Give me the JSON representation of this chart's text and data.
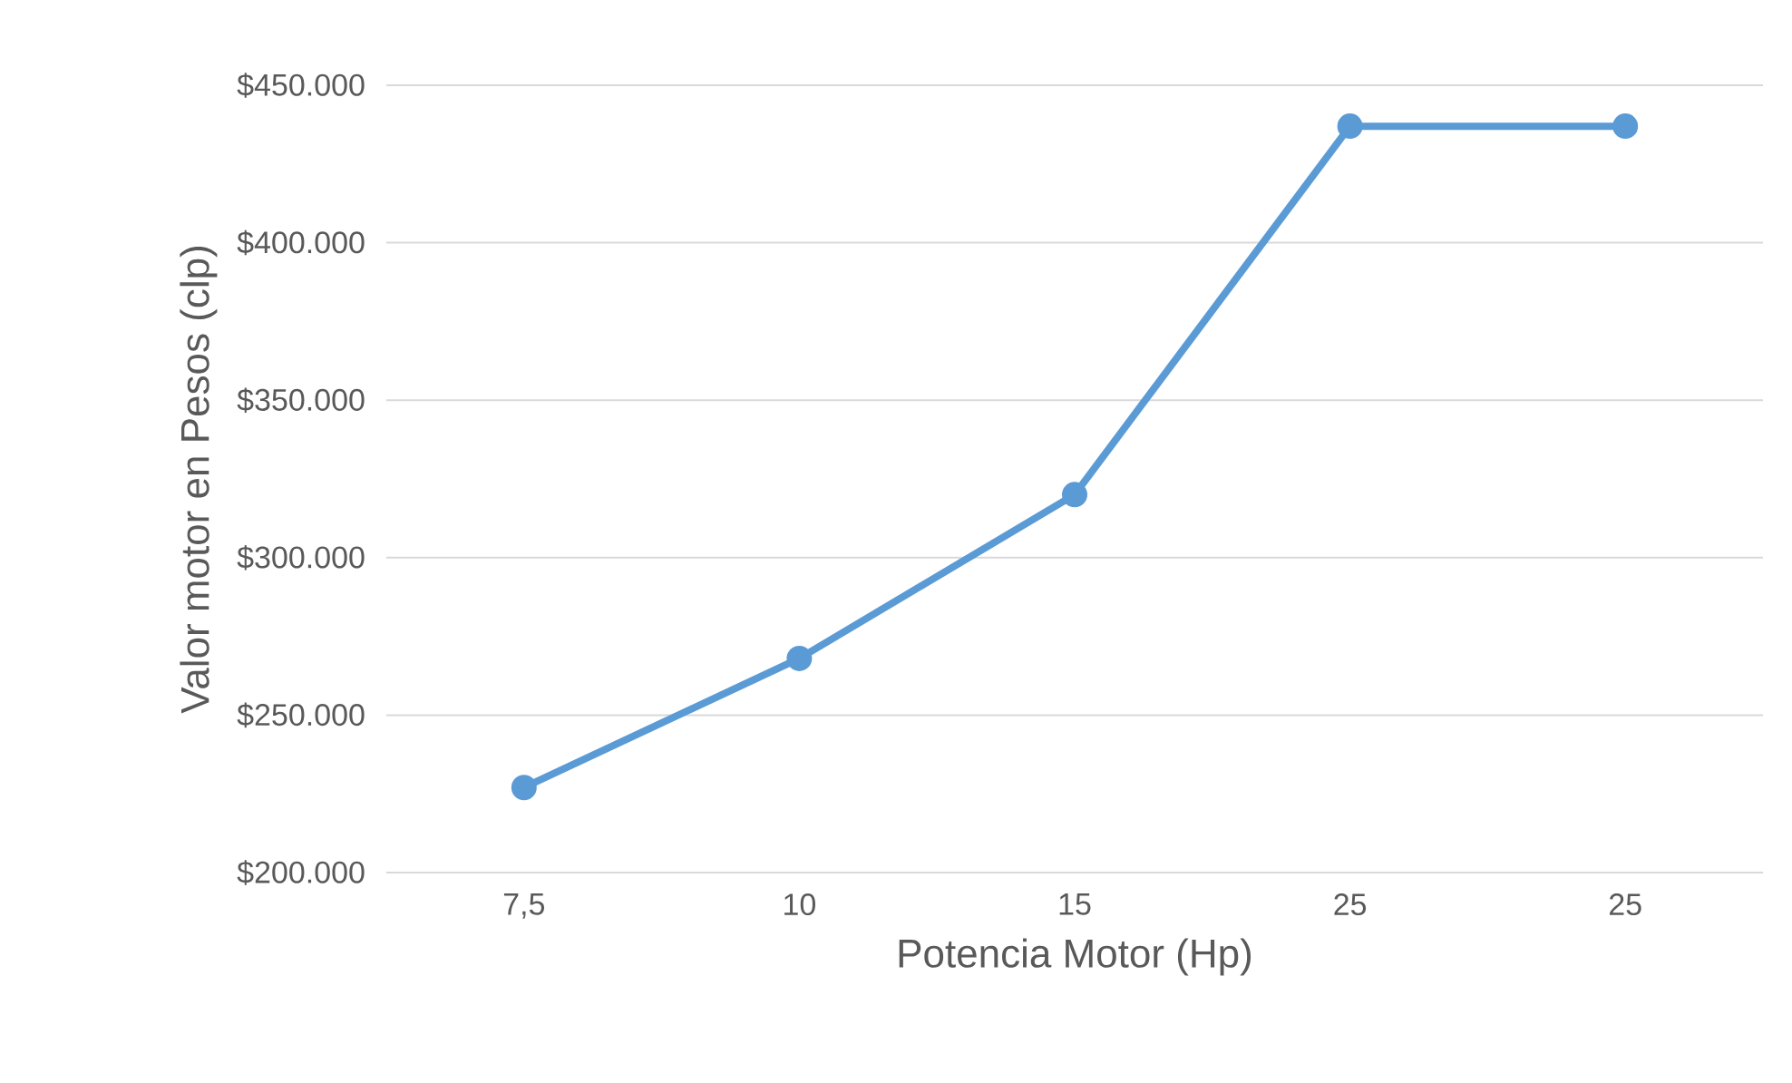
{
  "chart_data": {
    "type": "line",
    "xlabel": "Potencia Motor (Hp)",
    "ylabel": "Valor motor  en Pesos (clp)",
    "categories": [
      "7,5",
      "10",
      "15",
      "25",
      "25"
    ],
    "series": [
      {
        "color": "#5b9bd5",
        "values": [
          227000,
          268000,
          320000,
          437000,
          437000
        ]
      }
    ],
    "ylim": [
      200000,
      450000
    ],
    "yticks": [
      {
        "value": 200000,
        "label": "$200.000"
      },
      {
        "value": 250000,
        "label": "$250.000"
      },
      {
        "value": 300000,
        "label": "$300.000"
      },
      {
        "value": 350000,
        "label": "$350.000"
      },
      {
        "value": 400000,
        "label": "$400.000"
      },
      {
        "value": 450000,
        "label": "$450.000"
      }
    ],
    "grid": "y",
    "marker": "circle",
    "line_style": "solid"
  }
}
